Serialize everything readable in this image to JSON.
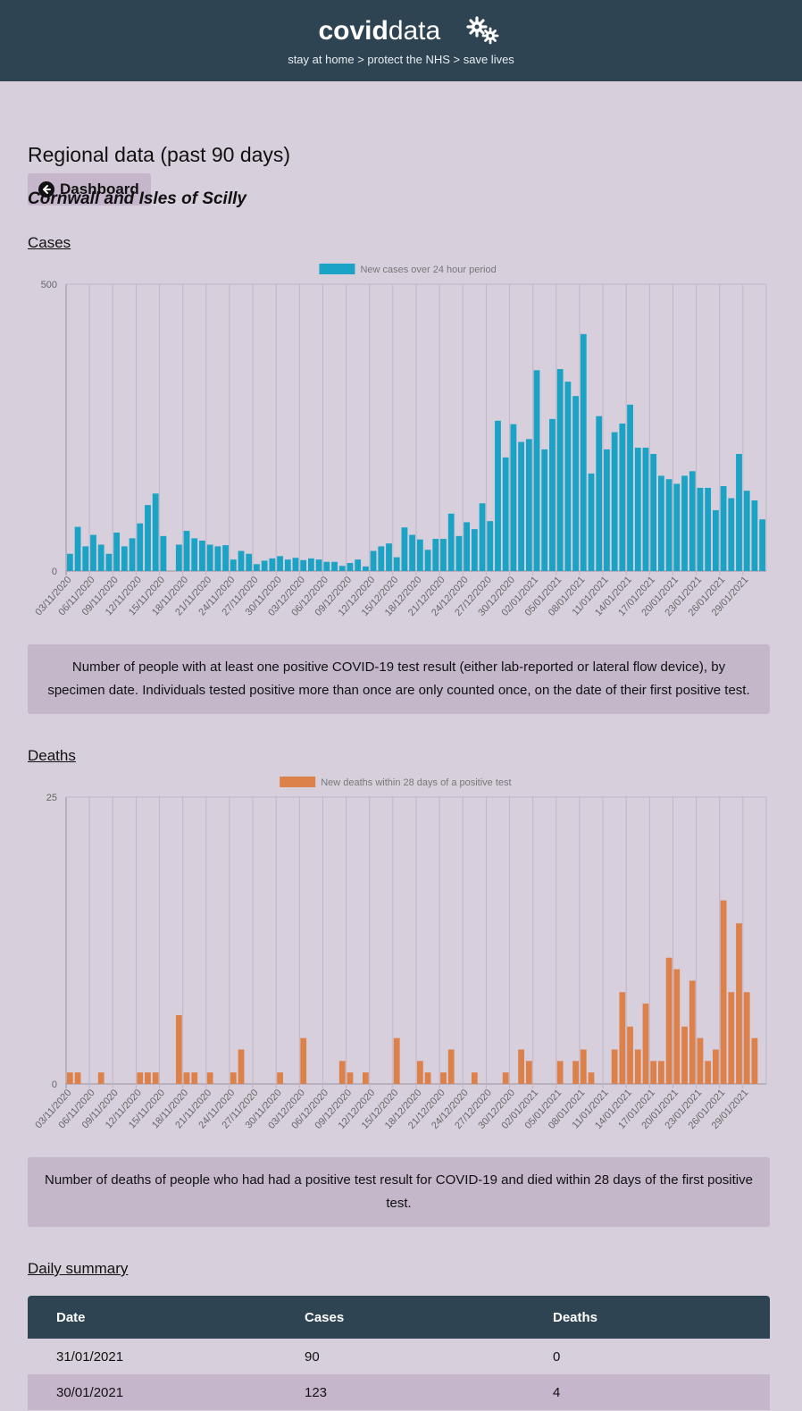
{
  "header": {
    "brand_bold": "covid",
    "brand_light": "data",
    "tagline": "stay at home > protect the NHS > save lives"
  },
  "nav": {
    "dashboard_label": "Dashboard"
  },
  "page": {
    "title": "Regional data (past 90 days)",
    "region": "Cornwall and Isles of Scilly",
    "cases_heading": "Cases",
    "deaths_heading": "Deaths",
    "summary_heading": "Daily summary",
    "cases_note": "Number of people with at least one positive COVID-19 test result (either lab-reported or lateral flow device), by specimen date. Individuals tested positive more than once are only counted once, on the date of their first positive test.",
    "deaths_note": "Number of deaths of people who had had a positive test result for COVID-19 and died within 28 days of the first positive test."
  },
  "colors": {
    "cases": "#1aa3c4",
    "deaths": "#dd814b",
    "header": "#2e4453",
    "background": "#d8cfdd"
  },
  "chart_data": [
    {
      "type": "bar",
      "legend": "New cases over 24 hour period",
      "ylim": [
        0,
        500
      ],
      "yticks": [
        0,
        500
      ],
      "grid": true,
      "legend_position": "top",
      "x_tick_labels": [
        "03/11/2020",
        "06/11/2020",
        "09/11/2020",
        "12/11/2020",
        "15/11/2020",
        "18/11/2020",
        "21/11/2020",
        "24/11/2020",
        "27/11/2020",
        "30/11/2020",
        "03/12/2020",
        "06/12/2020",
        "09/12/2020",
        "12/12/2020",
        "15/12/2020",
        "18/12/2020",
        "21/12/2020",
        "24/12/2020",
        "27/12/2020",
        "30/12/2020",
        "02/01/2021",
        "05/01/2021",
        "08/01/2021",
        "11/01/2021",
        "14/01/2021",
        "17/01/2021",
        "20/01/2021",
        "23/01/2021",
        "26/01/2021",
        "29/01/2021"
      ],
      "x": [
        "03/11/2020",
        "04/11/2020",
        "05/11/2020",
        "06/11/2020",
        "07/11/2020",
        "08/11/2020",
        "09/11/2020",
        "10/11/2020",
        "11/11/2020",
        "12/11/2020",
        "13/11/2020",
        "14/11/2020",
        "15/11/2020",
        "16/11/2020",
        "17/11/2020",
        "18/11/2020",
        "19/11/2020",
        "20/11/2020",
        "21/11/2020",
        "22/11/2020",
        "23/11/2020",
        "24/11/2020",
        "25/11/2020",
        "26/11/2020",
        "27/11/2020",
        "28/11/2020",
        "29/11/2020",
        "30/11/2020",
        "01/12/2020",
        "02/12/2020",
        "03/12/2020",
        "04/12/2020",
        "05/12/2020",
        "06/12/2020",
        "07/12/2020",
        "08/12/2020",
        "09/12/2020",
        "10/12/2020",
        "11/12/2020",
        "12/12/2020",
        "13/12/2020",
        "14/12/2020",
        "15/12/2020",
        "16/12/2020",
        "17/12/2020",
        "18/12/2020",
        "19/12/2020",
        "20/12/2020",
        "21/12/2020",
        "22/12/2020",
        "23/12/2020",
        "24/12/2020",
        "25/12/2020",
        "26/12/2020",
        "27/12/2020",
        "28/12/2020",
        "29/12/2020",
        "30/12/2020",
        "31/12/2020",
        "01/01/2021",
        "02/01/2021",
        "03/01/2021",
        "04/01/2021",
        "05/01/2021",
        "06/01/2021",
        "07/01/2021",
        "08/01/2021",
        "09/01/2021",
        "10/01/2021",
        "11/01/2021",
        "12/01/2021",
        "13/01/2021",
        "14/01/2021",
        "15/01/2021",
        "16/01/2021",
        "17/01/2021",
        "18/01/2021",
        "19/01/2021",
        "20/01/2021",
        "21/01/2021",
        "22/01/2021",
        "23/01/2021",
        "24/01/2021",
        "25/01/2021",
        "26/01/2021",
        "27/01/2021",
        "28/01/2021",
        "29/01/2021",
        "30/01/2021",
        "31/01/2021"
      ],
      "values": [
        30,
        77,
        43,
        63,
        46,
        30,
        67,
        43,
        57,
        83,
        115,
        135,
        61,
        0,
        46,
        70,
        57,
        53,
        46,
        43,
        45,
        20,
        35,
        30,
        12,
        18,
        22,
        26,
        20,
        23,
        19,
        22,
        20,
        16,
        16,
        9,
        14,
        20,
        8,
        35,
        43,
        48,
        24,
        76,
        63,
        55,
        37,
        56,
        56,
        100,
        61,
        85,
        73,
        118,
        87,
        262,
        198,
        256,
        225,
        230,
        350,
        212,
        265,
        352,
        330,
        305,
        413,
        170,
        270,
        212,
        242,
        257,
        290,
        215,
        215,
        204,
        166,
        160,
        152,
        166,
        174,
        145,
        145,
        106,
        148,
        127,
        204,
        140,
        123,
        90
      ]
    },
    {
      "type": "bar",
      "legend": "New deaths within 28 days of a positive test",
      "ylim": [
        0,
        25
      ],
      "yticks": [
        0,
        25
      ],
      "grid": true,
      "legend_position": "top",
      "x_tick_labels": [
        "03/11/2020",
        "06/11/2020",
        "09/11/2020",
        "12/11/2020",
        "15/11/2020",
        "18/11/2020",
        "21/11/2020",
        "24/11/2020",
        "27/11/2020",
        "30/11/2020",
        "03/12/2020",
        "06/12/2020",
        "09/12/2020",
        "12/12/2020",
        "15/12/2020",
        "18/12/2020",
        "21/12/2020",
        "24/12/2020",
        "27/12/2020",
        "30/12/2020",
        "02/01/2021",
        "05/01/2021",
        "08/01/2021",
        "11/01/2021",
        "14/01/2021",
        "17/01/2021",
        "20/01/2021",
        "23/01/2021",
        "26/01/2021",
        "29/01/2021"
      ],
      "values": [
        1,
        1,
        0,
        0,
        1,
        0,
        0,
        0,
        0,
        1,
        1,
        1,
        0,
        0,
        6,
        1,
        1,
        0,
        1,
        0,
        0,
        1,
        3,
        0,
        0,
        0,
        0,
        1,
        0,
        0,
        4,
        0,
        0,
        0,
        0,
        2,
        1,
        0,
        1,
        0,
        0,
        0,
        4,
        0,
        0,
        2,
        1,
        0,
        1,
        3,
        0,
        0,
        1,
        0,
        0,
        0,
        1,
        0,
        3,
        2,
        0,
        0,
        0,
        2,
        0,
        2,
        3,
        1,
        0,
        0,
        3,
        8,
        5,
        3,
        7,
        2,
        2,
        11,
        10,
        5,
        9,
        4,
        2,
        3,
        16,
        8,
        14,
        8,
        4,
        0
      ]
    }
  ],
  "table": {
    "headers": [
      "Date",
      "Cases",
      "Deaths"
    ],
    "rows": [
      [
        "31/01/2021",
        "90",
        "0"
      ],
      [
        "30/01/2021",
        "123",
        "4"
      ]
    ]
  }
}
